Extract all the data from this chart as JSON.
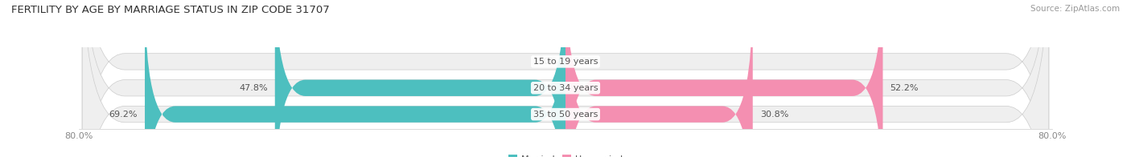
{
  "title": "FERTILITY BY AGE BY MARRIAGE STATUS IN ZIP CODE 31707",
  "source": "Source: ZipAtlas.com",
  "categories": [
    "15 to 19 years",
    "20 to 34 years",
    "35 to 50 years"
  ],
  "married": [
    0.0,
    47.8,
    69.2
  ],
  "unmarried": [
    0.0,
    52.2,
    30.8
  ],
  "married_color": "#4DBFBF",
  "unmarried_color": "#F48FB1",
  "bar_outline_color": "#CCCCCC",
  "xlim_left": -80.0,
  "xlim_right": 80.0,
  "title_fontsize": 9.5,
  "source_fontsize": 7.5,
  "label_fontsize": 8,
  "category_fontsize": 8,
  "bar_height": 0.62,
  "background_color": "#FFFFFF",
  "bar_background_color": "#EFEFEF",
  "text_color": "#555555",
  "axis_tick_color": "#888888",
  "category_bg_color": "#FFFFFF"
}
